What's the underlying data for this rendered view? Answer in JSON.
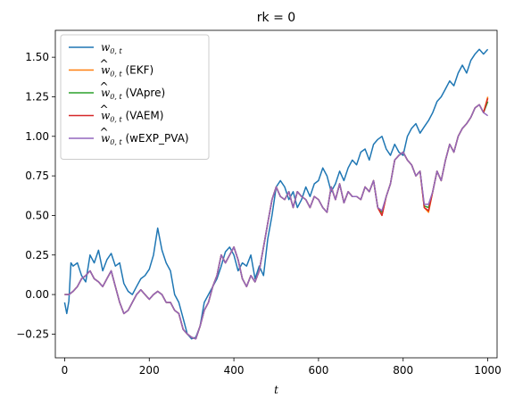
{
  "chart_data": {
    "type": "line",
    "title": "rk = 0",
    "xlabel": "t",
    "ylabel": "",
    "xlim": [
      -22,
      1022
    ],
    "ylim": [
      -0.4,
      1.67
    ],
    "xticks": [
      0,
      200,
      400,
      600,
      800,
      1000
    ],
    "xtick_labels": [
      "0",
      "200",
      "400",
      "600",
      "800",
      "1000"
    ],
    "yticks": [
      -0.25,
      0.0,
      0.25,
      0.5,
      0.75,
      1.0,
      1.25,
      1.5
    ],
    "ytick_labels": [
      "−0.25",
      "0.00",
      "0.25",
      "0.50",
      "0.75",
      "1.00",
      "1.25",
      "1.50"
    ],
    "grid": false,
    "legend_position": "top-left",
    "series": [
      {
        "name": "w0,t",
        "legend_main": "w",
        "legend_sub": "0, t",
        "legend_suffix": "",
        "hat": false,
        "color": "#1f77b4",
        "x": [
          0,
          5,
          10,
          15,
          20,
          30,
          40,
          50,
          60,
          70,
          80,
          90,
          100,
          110,
          120,
          130,
          140,
          150,
          160,
          170,
          180,
          190,
          200,
          210,
          220,
          230,
          240,
          250,
          260,
          270,
          280,
          290,
          300,
          310,
          320,
          330,
          340,
          350,
          360,
          370,
          380,
          390,
          400,
          410,
          420,
          430,
          440,
          450,
          460,
          470,
          480,
          490,
          500,
          510,
          520,
          530,
          540,
          550,
          560,
          570,
          580,
          590,
          600,
          610,
          620,
          630,
          640,
          650,
          660,
          670,
          680,
          690,
          700,
          710,
          720,
          730,
          740,
          750,
          760,
          770,
          780,
          790,
          800,
          810,
          820,
          830,
          840,
          850,
          860,
          870,
          880,
          890,
          900,
          910,
          920,
          930,
          940,
          950,
          960,
          970,
          980,
          990,
          1000
        ],
        "y": [
          -0.05,
          -0.12,
          -0.04,
          0.2,
          0.18,
          0.2,
          0.12,
          0.08,
          0.25,
          0.2,
          0.28,
          0.15,
          0.22,
          0.26,
          0.18,
          0.2,
          0.07,
          0.02,
          0.0,
          0.05,
          0.1,
          0.12,
          0.16,
          0.25,
          0.42,
          0.28,
          0.2,
          0.15,
          0.0,
          -0.05,
          -0.15,
          -0.25,
          -0.28,
          -0.27,
          -0.2,
          -0.05,
          0.0,
          0.05,
          0.1,
          0.18,
          0.27,
          0.3,
          0.25,
          0.15,
          0.2,
          0.18,
          0.25,
          0.1,
          0.18,
          0.12,
          0.35,
          0.5,
          0.68,
          0.72,
          0.68,
          0.6,
          0.65,
          0.55,
          0.6,
          0.68,
          0.62,
          0.7,
          0.72,
          0.8,
          0.75,
          0.65,
          0.7,
          0.78,
          0.72,
          0.8,
          0.85,
          0.82,
          0.9,
          0.92,
          0.85,
          0.95,
          0.98,
          1.0,
          0.92,
          0.88,
          0.95,
          0.9,
          0.88,
          1.0,
          1.05,
          1.08,
          1.02,
          1.06,
          1.1,
          1.15,
          1.22,
          1.25,
          1.3,
          1.35,
          1.32,
          1.4,
          1.45,
          1.4,
          1.48,
          1.52,
          1.55,
          1.52,
          1.55
        ]
      },
      {
        "name": "ŵ0,t (EKF)",
        "legend_main": "w",
        "legend_sub": "0, t",
        "legend_suffix": " (EKF)",
        "hat": true,
        "color": "#ff7f0e",
        "x": [
          0,
          10,
          20,
          30,
          40,
          50,
          60,
          70,
          80,
          90,
          100,
          110,
          120,
          130,
          140,
          150,
          160,
          170,
          180,
          190,
          200,
          210,
          220,
          230,
          240,
          250,
          260,
          270,
          280,
          290,
          300,
          310,
          320,
          330,
          340,
          350,
          360,
          370,
          380,
          390,
          400,
          410,
          420,
          430,
          440,
          450,
          460,
          470,
          480,
          490,
          500,
          510,
          520,
          530,
          540,
          550,
          560,
          570,
          580,
          590,
          600,
          610,
          620,
          630,
          640,
          650,
          660,
          670,
          680,
          690,
          700,
          710,
          720,
          730,
          740,
          750,
          760,
          770,
          780,
          790,
          800,
          810,
          820,
          830,
          840,
          850,
          860,
          870,
          880,
          890,
          900,
          910,
          920,
          930,
          940,
          950,
          960,
          970,
          980,
          990,
          1000
        ],
        "y": [
          0.0,
          0.0,
          0.02,
          0.05,
          0.1,
          0.12,
          0.15,
          0.1,
          0.08,
          0.05,
          0.1,
          0.15,
          0.05,
          -0.05,
          -0.12,
          -0.1,
          -0.05,
          0.0,
          0.03,
          0.0,
          -0.03,
          0.0,
          0.02,
          0.0,
          -0.05,
          -0.05,
          -0.1,
          -0.12,
          -0.22,
          -0.25,
          -0.27,
          -0.28,
          -0.2,
          -0.1,
          -0.05,
          0.05,
          0.12,
          0.25,
          0.2,
          0.25,
          0.3,
          0.22,
          0.1,
          0.05,
          0.12,
          0.08,
          0.15,
          0.3,
          0.45,
          0.6,
          0.68,
          0.62,
          0.6,
          0.65,
          0.55,
          0.65,
          0.62,
          0.6,
          0.55,
          0.62,
          0.6,
          0.55,
          0.52,
          0.68,
          0.6,
          0.7,
          0.58,
          0.65,
          0.62,
          0.62,
          0.6,
          0.68,
          0.65,
          0.72,
          0.55,
          0.5,
          0.62,
          0.7,
          0.85,
          0.88,
          0.9,
          0.85,
          0.82,
          0.75,
          0.78,
          0.55,
          0.52,
          0.65,
          0.78,
          0.72,
          0.85,
          0.95,
          0.9,
          1.0,
          1.05,
          1.08,
          1.12,
          1.18,
          1.2,
          1.15,
          1.25
        ]
      },
      {
        "name": "ŵ0,t (VApre)",
        "legend_main": "w",
        "legend_sub": "0, t",
        "legend_suffix": " (VApre)",
        "hat": true,
        "color": "#2ca02c",
        "x": [
          0,
          10,
          20,
          30,
          40,
          50,
          60,
          70,
          80,
          90,
          100,
          110,
          120,
          130,
          140,
          150,
          160,
          170,
          180,
          190,
          200,
          210,
          220,
          230,
          240,
          250,
          260,
          270,
          280,
          290,
          300,
          310,
          320,
          330,
          340,
          350,
          360,
          370,
          380,
          390,
          400,
          410,
          420,
          430,
          440,
          450,
          460,
          470,
          480,
          490,
          500,
          510,
          520,
          530,
          540,
          550,
          560,
          570,
          580,
          590,
          600,
          610,
          620,
          630,
          640,
          650,
          660,
          670,
          680,
          690,
          700,
          710,
          720,
          730,
          740,
          750,
          760,
          770,
          780,
          790,
          800,
          810,
          820,
          830,
          840,
          850,
          860,
          870,
          880,
          890,
          900,
          910,
          920,
          930,
          940,
          950,
          960,
          970,
          980,
          990,
          1000
        ],
        "y": [
          0.0,
          0.0,
          0.02,
          0.05,
          0.1,
          0.12,
          0.15,
          0.1,
          0.08,
          0.05,
          0.1,
          0.15,
          0.05,
          -0.05,
          -0.12,
          -0.1,
          -0.05,
          0.0,
          0.03,
          0.0,
          -0.03,
          0.0,
          0.02,
          0.0,
          -0.05,
          -0.05,
          -0.1,
          -0.12,
          -0.22,
          -0.25,
          -0.27,
          -0.28,
          -0.2,
          -0.1,
          -0.05,
          0.05,
          0.12,
          0.25,
          0.2,
          0.25,
          0.3,
          0.22,
          0.1,
          0.05,
          0.12,
          0.08,
          0.15,
          0.3,
          0.45,
          0.6,
          0.68,
          0.62,
          0.6,
          0.65,
          0.55,
          0.65,
          0.62,
          0.6,
          0.55,
          0.62,
          0.6,
          0.55,
          0.52,
          0.68,
          0.6,
          0.7,
          0.58,
          0.65,
          0.62,
          0.62,
          0.6,
          0.68,
          0.65,
          0.72,
          0.55,
          0.52,
          0.62,
          0.7,
          0.85,
          0.88,
          0.9,
          0.85,
          0.82,
          0.75,
          0.78,
          0.56,
          0.55,
          0.65,
          0.78,
          0.72,
          0.85,
          0.95,
          0.9,
          1.0,
          1.05,
          1.08,
          1.12,
          1.18,
          1.2,
          1.15,
          1.22
        ]
      },
      {
        "name": "ŵ0,t (VAEM)",
        "legend_main": "w",
        "legend_sub": "0, t",
        "legend_suffix": " (VAEM)",
        "hat": true,
        "color": "#d62728",
        "x": [
          0,
          10,
          20,
          30,
          40,
          50,
          60,
          70,
          80,
          90,
          100,
          110,
          120,
          130,
          140,
          150,
          160,
          170,
          180,
          190,
          200,
          210,
          220,
          230,
          240,
          250,
          260,
          270,
          280,
          290,
          300,
          310,
          320,
          330,
          340,
          350,
          360,
          370,
          380,
          390,
          400,
          410,
          420,
          430,
          440,
          450,
          460,
          470,
          480,
          490,
          500,
          510,
          520,
          530,
          540,
          550,
          560,
          570,
          580,
          590,
          600,
          610,
          620,
          630,
          640,
          650,
          660,
          670,
          680,
          690,
          700,
          710,
          720,
          730,
          740,
          750,
          760,
          770,
          780,
          790,
          800,
          810,
          820,
          830,
          840,
          850,
          860,
          870,
          880,
          890,
          900,
          910,
          920,
          930,
          940,
          950,
          960,
          970,
          980,
          990,
          1000
        ],
        "y": [
          0.0,
          0.0,
          0.02,
          0.05,
          0.1,
          0.12,
          0.15,
          0.1,
          0.08,
          0.05,
          0.1,
          0.15,
          0.05,
          -0.05,
          -0.12,
          -0.1,
          -0.05,
          0.0,
          0.03,
          0.0,
          -0.03,
          0.0,
          0.02,
          0.0,
          -0.05,
          -0.05,
          -0.1,
          -0.12,
          -0.22,
          -0.25,
          -0.27,
          -0.28,
          -0.2,
          -0.1,
          -0.05,
          0.05,
          0.12,
          0.25,
          0.2,
          0.25,
          0.3,
          0.22,
          0.1,
          0.05,
          0.12,
          0.08,
          0.15,
          0.3,
          0.45,
          0.6,
          0.68,
          0.62,
          0.6,
          0.65,
          0.55,
          0.65,
          0.62,
          0.6,
          0.55,
          0.62,
          0.6,
          0.55,
          0.52,
          0.68,
          0.6,
          0.7,
          0.58,
          0.65,
          0.62,
          0.62,
          0.6,
          0.68,
          0.65,
          0.72,
          0.55,
          0.5,
          0.62,
          0.7,
          0.85,
          0.88,
          0.9,
          0.85,
          0.82,
          0.75,
          0.78,
          0.55,
          0.53,
          0.65,
          0.78,
          0.72,
          0.85,
          0.95,
          0.9,
          1.0,
          1.05,
          1.08,
          1.12,
          1.18,
          1.2,
          1.15,
          1.24
        ]
      },
      {
        "name": "ŵ0,t (wEXP_PVA)",
        "legend_main": "w",
        "legend_sub": "0, t",
        "legend_suffix": " (wEXP_PVA)",
        "hat": true,
        "color": "#9467bd",
        "x": [
          0,
          10,
          20,
          30,
          40,
          50,
          60,
          70,
          80,
          90,
          100,
          110,
          120,
          130,
          140,
          150,
          160,
          170,
          180,
          190,
          200,
          210,
          220,
          230,
          240,
          250,
          260,
          270,
          280,
          290,
          300,
          310,
          320,
          330,
          340,
          350,
          360,
          370,
          380,
          390,
          400,
          410,
          420,
          430,
          440,
          450,
          460,
          470,
          480,
          490,
          500,
          510,
          520,
          530,
          540,
          550,
          560,
          570,
          580,
          590,
          600,
          610,
          620,
          630,
          640,
          650,
          660,
          670,
          680,
          690,
          700,
          710,
          720,
          730,
          740,
          750,
          760,
          770,
          780,
          790,
          800,
          810,
          820,
          830,
          840,
          850,
          860,
          870,
          880,
          890,
          900,
          910,
          920,
          930,
          940,
          950,
          960,
          970,
          980,
          990,
          1000
        ],
        "y": [
          0.0,
          0.0,
          0.02,
          0.05,
          0.1,
          0.12,
          0.15,
          0.1,
          0.08,
          0.05,
          0.1,
          0.15,
          0.05,
          -0.05,
          -0.12,
          -0.1,
          -0.05,
          0.0,
          0.03,
          0.0,
          -0.03,
          0.0,
          0.02,
          0.0,
          -0.05,
          -0.05,
          -0.1,
          -0.12,
          -0.22,
          -0.25,
          -0.27,
          -0.28,
          -0.2,
          -0.1,
          -0.05,
          0.05,
          0.12,
          0.25,
          0.2,
          0.25,
          0.3,
          0.22,
          0.1,
          0.05,
          0.12,
          0.08,
          0.15,
          0.3,
          0.45,
          0.6,
          0.68,
          0.62,
          0.6,
          0.65,
          0.55,
          0.65,
          0.62,
          0.6,
          0.55,
          0.62,
          0.6,
          0.55,
          0.52,
          0.68,
          0.6,
          0.7,
          0.58,
          0.65,
          0.62,
          0.62,
          0.6,
          0.68,
          0.65,
          0.72,
          0.55,
          0.53,
          0.62,
          0.7,
          0.85,
          0.88,
          0.9,
          0.85,
          0.82,
          0.75,
          0.78,
          0.57,
          0.57,
          0.65,
          0.78,
          0.72,
          0.85,
          0.95,
          0.9,
          1.0,
          1.05,
          1.08,
          1.12,
          1.18,
          1.2,
          1.15,
          1.13
        ]
      }
    ]
  }
}
